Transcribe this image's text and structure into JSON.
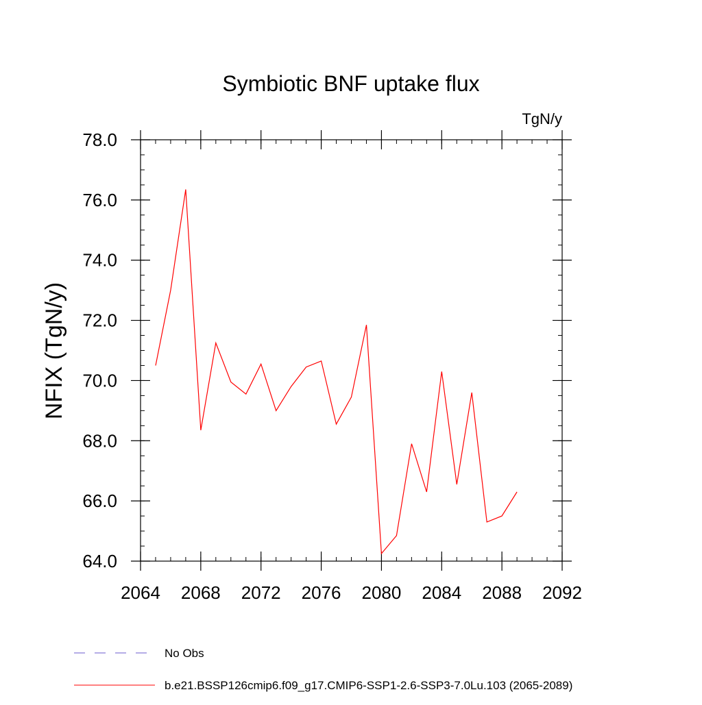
{
  "chart_data": {
    "type": "line",
    "title": "Symbiotic BNF uptake flux",
    "units_label": "TgN/y",
    "ylabel": "NFIX  (TgN/y)",
    "xlabel": "",
    "xlim": [
      2064,
      2092
    ],
    "ylim": [
      64.0,
      78.0
    ],
    "x_ticks": [
      2064,
      2068,
      2072,
      2076,
      2080,
      2084,
      2088,
      2092
    ],
    "y_ticks": [
      "64.0",
      "66.0",
      "68.0",
      "70.0",
      "72.0",
      "74.0",
      "76.0",
      "78.0"
    ],
    "x_minor_step": 1,
    "y_minor_step": 0.5,
    "grid": false,
    "legend_position": "bottom",
    "series": [
      {
        "name": "b.e21.BSSP126cmip6.f09_g17.CMIP6-SSP1-2.6-SSP3-7.0Lu.103 (2065-2089)",
        "color": "#ff0000",
        "style": "solid",
        "x": [
          2065,
          2066,
          2067,
          2068,
          2069,
          2070,
          2071,
          2072,
          2073,
          2074,
          2075,
          2076,
          2077,
          2078,
          2079,
          2080,
          2081,
          2082,
          2083,
          2084,
          2085,
          2086,
          2087,
          2088,
          2089
        ],
        "y": [
          70.5,
          73.0,
          76.35,
          68.35,
          71.25,
          69.95,
          69.55,
          70.55,
          69.0,
          69.8,
          70.45,
          70.65,
          68.55,
          69.45,
          71.85,
          64.25,
          64.85,
          67.9,
          66.3,
          70.3,
          66.55,
          69.6,
          65.3,
          65.5,
          66.3
        ]
      }
    ],
    "legend": [
      {
        "label": "No Obs",
        "color": "#6a5acd",
        "style": "dashed"
      },
      {
        "label": "b.e21.BSSP126cmip6.f09_g17.CMIP6-SSP1-2.6-SSP3-7.0Lu.103 (2065-2089)",
        "color": "#ff0000",
        "style": "solid"
      }
    ]
  }
}
